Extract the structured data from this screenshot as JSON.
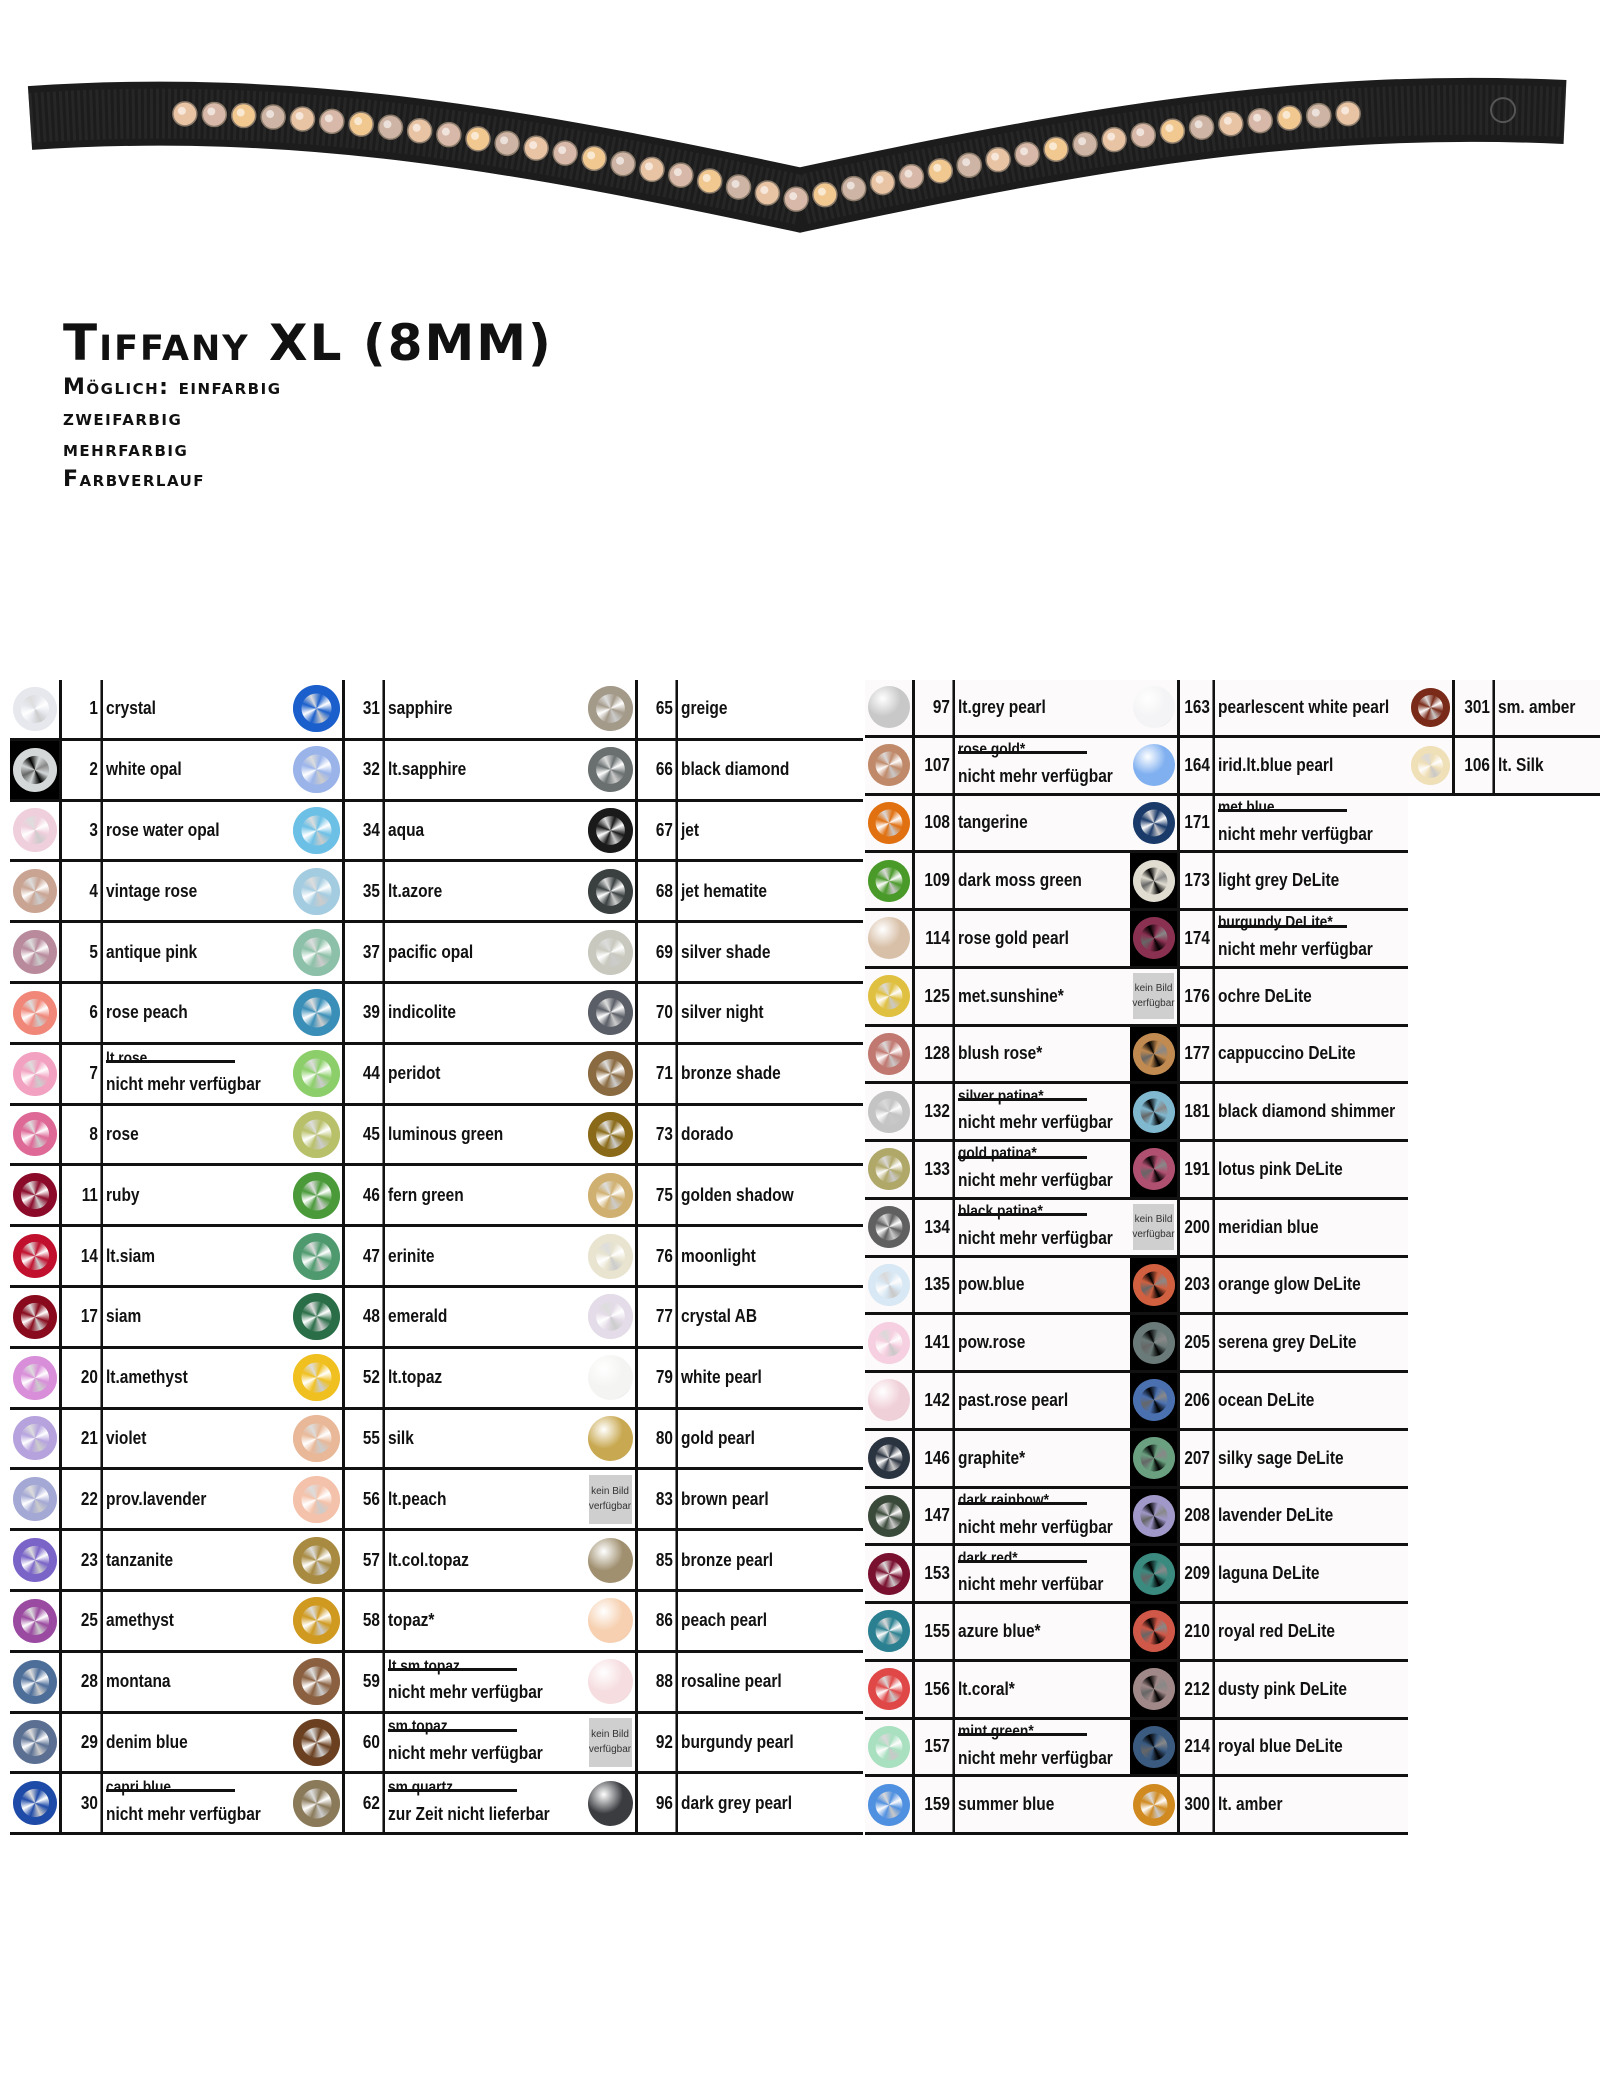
{
  "header": {
    "title": "Tiffany XL (8MM)",
    "lines": [
      "Möglich: einfarbig",
      "zweifarbig",
      "mehrfarbig",
      "Farbverlauf"
    ]
  },
  "no_image_label": [
    "kein Bild",
    "verfügbar"
  ],
  "colors": {
    "belt": "#1c1c1c",
    "grid": "#111111",
    "right_bg": "#fcfafa"
  },
  "columns": [
    [
      {
        "num": "1",
        "name": "crystal",
        "color": "#e6e8ee"
      },
      {
        "num": "2",
        "name": "white opal",
        "color": "#d4d8d8",
        "swatch_bg": "dark"
      },
      {
        "num": "3",
        "name": "rose water opal",
        "color": "#efcfdc"
      },
      {
        "num": "4",
        "name": "vintage rose",
        "color": "#c9a493"
      },
      {
        "num": "5",
        "name": "antique pink",
        "color": "#b88a9c"
      },
      {
        "num": "6",
        "name": "rose peach",
        "color": "#f08779"
      },
      {
        "num": "7",
        "name": "lt.rose",
        "strike": true,
        "note": "nicht mehr verfügbar",
        "color": "#f2a2c0"
      },
      {
        "num": "8",
        "name": "rose",
        "color": "#de6896"
      },
      {
        "num": "11",
        "name": "ruby",
        "color": "#8b0a2a"
      },
      {
        "num": "14",
        "name": "lt.siam",
        "color": "#c0102e"
      },
      {
        "num": "17",
        "name": "siam",
        "color": "#880a1c"
      },
      {
        "num": "20",
        "name": "lt.amethyst",
        "color": "#d88ed8"
      },
      {
        "num": "21",
        "name": "violet",
        "color": "#b6a3de"
      },
      {
        "num": "22",
        "name": "prov.lavender",
        "color": "#a4a8d4"
      },
      {
        "num": "23",
        "name": "tanzanite",
        "color": "#7a64c8"
      },
      {
        "num": "25",
        "name": "amethyst",
        "color": "#9a4aa0"
      },
      {
        "num": "28",
        "name": "montana",
        "color": "#4e6e9a"
      },
      {
        "num": "29",
        "name": "denim blue",
        "color": "#5a6f92"
      },
      {
        "num": "30",
        "name": "capri blue",
        "strike": true,
        "note": "nicht mehr verfügbar",
        "color": "#1e4aa8"
      }
    ],
    [
      {
        "num": "31",
        "name": "sapphire",
        "color": "#1a5fcc"
      },
      {
        "num": "32",
        "name": "lt.sapphire",
        "color": "#9ab4ea"
      },
      {
        "num": "34",
        "name": "aqua",
        "color": "#6cc0e6"
      },
      {
        "num": "35",
        "name": "lt.azore",
        "color": "#a4cce0"
      },
      {
        "num": "37",
        "name": "pacific opal",
        "color": "#8cc0a8"
      },
      {
        "num": "39",
        "name": "indicolite",
        "color": "#3a8fb8"
      },
      {
        "num": "44",
        "name": "peridot",
        "color": "#8ccf6a"
      },
      {
        "num": "45",
        "name": "luminous green",
        "color": "#b8c06a"
      },
      {
        "num": "46",
        "name": "fern green",
        "color": "#4a9a3a"
      },
      {
        "num": "47",
        "name": "erinite",
        "color": "#4e9a6e"
      },
      {
        "num": "48",
        "name": "emerald",
        "color": "#2a6e48"
      },
      {
        "num": "52",
        "name": "lt.topaz",
        "color": "#f0c020"
      },
      {
        "num": "55",
        "name": "silk",
        "color": "#e8b898"
      },
      {
        "num": "56",
        "name": "lt.peach",
        "color": "#f4c2aa"
      },
      {
        "num": "57",
        "name": "lt.col.topaz",
        "color": "#a88a40"
      },
      {
        "num": "58",
        "name": "topaz*",
        "color": "#d09a20"
      },
      {
        "num": "59",
        "name": "lt.sm.topaz",
        "strike": true,
        "note": "nicht mehr verfügbar",
        "color": "#8a6040"
      },
      {
        "num": "60",
        "name": "sm.topaz",
        "strike": true,
        "note": "nicht mehr verfügbar",
        "color": "#6a4020"
      },
      {
        "num": "62",
        "name": "sm.quartz",
        "strike": true,
        "note": "zur Zeit nicht lieferbar",
        "color": "#8a7a5a"
      }
    ],
    [
      {
        "num": "65",
        "name": "greige",
        "color": "#a49a8a"
      },
      {
        "num": "66",
        "name": "black diamond",
        "color": "#6a7070"
      },
      {
        "num": "67",
        "name": "jet",
        "color": "#1a1a1a"
      },
      {
        "num": "68",
        "name": "jet hematite",
        "color": "#3a4040"
      },
      {
        "num": "69",
        "name": "silver shade",
        "color": "#c8c8be"
      },
      {
        "num": "70",
        "name": "silver night",
        "color": "#5a5e66"
      },
      {
        "num": "71",
        "name": "bronze shade",
        "color": "#8a6a40"
      },
      {
        "num": "73",
        "name": "dorado",
        "color": "#8a6a18"
      },
      {
        "num": "75",
        "name": "golden shadow",
        "color": "#d0b070"
      },
      {
        "num": "76",
        "name": "moonlight",
        "color": "#e8e4d0"
      },
      {
        "num": "77",
        "name": "crystal AB",
        "color": "#e4dce8"
      },
      {
        "num": "79",
        "name": "white pearl",
        "color": "#f4f4f2",
        "type": "pearl"
      },
      {
        "num": "80",
        "name": "gold pearl",
        "color": "#c8a850",
        "type": "pearl"
      },
      {
        "num": "83",
        "name": "brown pearl",
        "no_image": true
      },
      {
        "num": "85",
        "name": "bronze pearl",
        "color": "#a09070",
        "type": "pearl"
      },
      {
        "num": "86",
        "name": "peach pearl",
        "color": "#f6d0b0",
        "type": "pearl"
      },
      {
        "num": "88",
        "name": "rosaline pearl",
        "color": "#f6dde0",
        "type": "pearl"
      },
      {
        "num": "92",
        "name": "burgundy pearl",
        "no_image": true
      },
      {
        "num": "96",
        "name": "dark grey pearl",
        "color": "#3a3c40",
        "type": "pearl"
      }
    ],
    [
      {
        "num": "97",
        "name": "lt.grey pearl",
        "color": "#c8c8c8",
        "type": "pearl"
      },
      {
        "num": "107",
        "name": "rose gold*",
        "strike": true,
        "note": "nicht mehr verfügbar",
        "color": "#c08a6a"
      },
      {
        "num": "108",
        "name": "tangerine",
        "color": "#e07010"
      },
      {
        "num": "109",
        "name": "dark moss green",
        "color": "#4a9a2a"
      },
      {
        "num": "114",
        "name": "rose gold pearl",
        "color": "#d8c0a8",
        "type": "pearl"
      },
      {
        "num": "125",
        "name": "met.sunshine*",
        "color": "#e0c040"
      },
      {
        "num": "128",
        "name": "blush rose*",
        "color": "#c07870"
      },
      {
        "num": "132",
        "name": "silver patina*",
        "strike": true,
        "note": "nicht mehr verfügbar",
        "color": "#c4c4c4"
      },
      {
        "num": "133",
        "name": "gold patina*",
        "strike": true,
        "note": "nicht mehr verfügbar",
        "color": "#b0a868"
      },
      {
        "num": "134",
        "name": "black patina*",
        "strike": true,
        "note": "nicht mehr verfügbar",
        "color": "#606060"
      },
      {
        "num": "135",
        "name": "pow.blue",
        "color": "#d8e8f4"
      },
      {
        "num": "141",
        "name": "pow.rose",
        "color": "#f6d0e0"
      },
      {
        "num": "142",
        "name": "past.rose pearl",
        "color": "#f0d0d8",
        "type": "pearl"
      },
      {
        "num": "146",
        "name": "graphite*",
        "color": "#2a3340"
      },
      {
        "num": "147",
        "name": "dark rainbow*",
        "strike": true,
        "note": "nicht mehr verfügbar",
        "color": "#3a4a3a"
      },
      {
        "num": "153",
        "name": "dark red*",
        "strike": true,
        "note": "nicht mehr verfübar",
        "color": "#7a1030"
      },
      {
        "num": "155",
        "name": "azure blue*",
        "color": "#2a8090"
      },
      {
        "num": "156",
        "name": "lt.coral*",
        "color": "#e04848"
      },
      {
        "num": "157",
        "name": "mint green*",
        "strike": true,
        "note": "nicht mehr verfügbar",
        "color": "#a8e0c0"
      },
      {
        "num": "159",
        "name": "summer blue",
        "color": "#5090e0"
      }
    ],
    [
      {
        "num": "163",
        "name": "pearlescent white pearl",
        "color": "#f4f4f6",
        "type": "pearl"
      },
      {
        "num": "164",
        "name": "irid.lt.blue pearl",
        "color": "#80b0f0",
        "type": "pearl"
      },
      {
        "num": "171",
        "name": "met.blue",
        "strike": true,
        "note": "nicht mehr verfügbar",
        "color": "#1a3a6a"
      },
      {
        "num": "173",
        "name": "light grey DeLite",
        "color": "#e0dcd0",
        "swatch_bg": "dark"
      },
      {
        "num": "174",
        "name": "burgundy DeLite*",
        "strike": true,
        "note": "nicht mehr verfügbar",
        "color": "#8a3050",
        "swatch_bg": "dark"
      },
      {
        "num": "176",
        "name": "ochre DeLite",
        "no_image": true
      },
      {
        "num": "177",
        "name": "cappuccino DeLite",
        "color": "#c08a50",
        "swatch_bg": "dark"
      },
      {
        "num": "181",
        "name": "black diamond shimmer",
        "color": "#80b8d0",
        "swatch_bg": "dark"
      },
      {
        "num": "191",
        "name": "lotus pink DeLite",
        "color": "#b05070",
        "swatch_bg": "dark"
      },
      {
        "num": "200",
        "name": "meridian blue",
        "no_image": true
      },
      {
        "num": "203",
        "name": "orange glow DeLite",
        "color": "#d06040",
        "swatch_bg": "dark"
      },
      {
        "num": "205",
        "name": "serena grey DeLite",
        "color": "#6a7a78",
        "swatch_bg": "dark"
      },
      {
        "num": "206",
        "name": "ocean DeLite",
        "color": "#4a70b0",
        "swatch_bg": "dark"
      },
      {
        "num": "207",
        "name": "silky sage DeLite",
        "color": "#6aa080",
        "swatch_bg": "dark"
      },
      {
        "num": "208",
        "name": "lavender DeLite",
        "color": "#a098c8",
        "swatch_bg": "dark"
      },
      {
        "num": "209",
        "name": "laguna DeLite",
        "color": "#3a8a80",
        "swatch_bg": "dark"
      },
      {
        "num": "210",
        "name": "royal red DeLite",
        "color": "#d05848",
        "swatch_bg": "dark"
      },
      {
        "num": "212",
        "name": "dusty pink DeLite",
        "color": "#a08888",
        "swatch_bg": "dark"
      },
      {
        "num": "214",
        "name": "royal blue DeLite",
        "color": "#3a5a80",
        "swatch_bg": "dark"
      },
      {
        "num": "300",
        "name": "lt. amber",
        "color": "#d08a20"
      }
    ],
    [
      {
        "num": "301",
        "name": "sm. amber",
        "color": "#7a2a18"
      },
      {
        "num": "106",
        "name": "lt. Silk",
        "color": "#f0e0b8"
      }
    ]
  ]
}
